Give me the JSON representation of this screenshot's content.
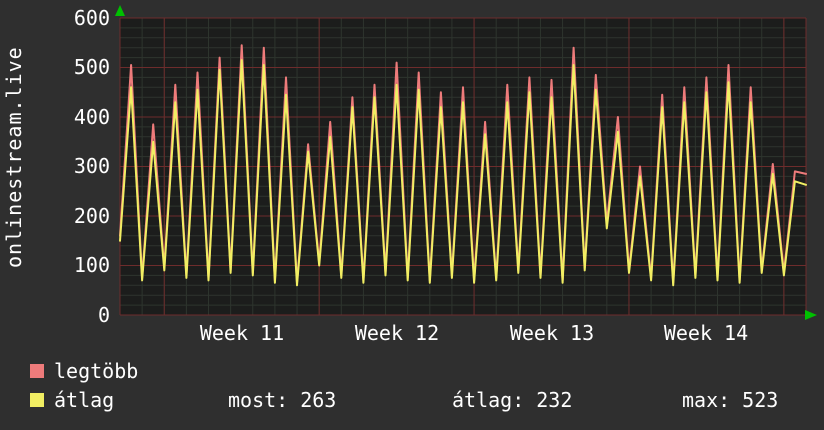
{
  "chart_data": {
    "type": "line",
    "title": "",
    "ylabel": "onlinestream.live",
    "ylim": [
      0,
      600
    ],
    "yticks": [
      "600",
      "500",
      "400",
      "300",
      "200",
      "100",
      "0"
    ],
    "xticklabels": [
      "Week 11",
      "Week 12",
      "Week 13",
      "Week 14"
    ],
    "week_tick_days": [
      2,
      9,
      16,
      23,
      30
    ],
    "x_span_days": 31,
    "grid": true,
    "legend_position": "bottom-left",
    "legend": [
      {
        "label": "legtöbb",
        "color": "#ee7b7b"
      },
      {
        "label": "átlag",
        "color": "#f1ee63"
      }
    ],
    "series": [
      {
        "name": "legtöbb",
        "color": "#ee7b7b",
        "troughs": [
          160,
          75,
          95,
          80,
          75,
          90,
          85,
          70,
          65,
          105,
          80,
          70,
          85,
          75,
          70,
          80,
          70,
          75,
          90,
          80,
          70,
          95,
          185,
          90,
          75,
          65,
          80,
          75,
          70,
          90,
          85
        ],
        "peaks": [
          505,
          385,
          465,
          490,
          520,
          545,
          540,
          480,
          345,
          390,
          440,
          465,
          510,
          490,
          450,
          460,
          390,
          465,
          480,
          475,
          540,
          485,
          400,
          300,
          445,
          460,
          480,
          505,
          460,
          305,
          290
        ],
        "end": 285
      },
      {
        "name": "átlag",
        "color": "#f1ee63",
        "troughs": [
          150,
          70,
          90,
          75,
          70,
          85,
          80,
          65,
          60,
          100,
          75,
          65,
          80,
          70,
          65,
          75,
          65,
          70,
          85,
          75,
          65,
          90,
          175,
          85,
          70,
          60,
          75,
          70,
          65,
          85,
          80
        ],
        "peaks": [
          460,
          350,
          430,
          455,
          495,
          515,
          505,
          445,
          330,
          360,
          420,
          440,
          465,
          455,
          420,
          430,
          365,
          430,
          450,
          440,
          505,
          455,
          370,
          280,
          420,
          430,
          450,
          470,
          430,
          285,
          270
        ],
        "end": 263
      }
    ],
    "stats": [
      {
        "label": "most:",
        "value": "263"
      },
      {
        "label": "átlag:",
        "value": "232"
      },
      {
        "label": "max:",
        "value": "523"
      }
    ],
    "colors": {
      "background": "#2f2f2f",
      "plot_bg": "#1c1d1c",
      "grid_minor": "#2e352e",
      "grid_major": "#6e2c2c",
      "text": "#ffffff",
      "arrow": "#00c000"
    }
  }
}
